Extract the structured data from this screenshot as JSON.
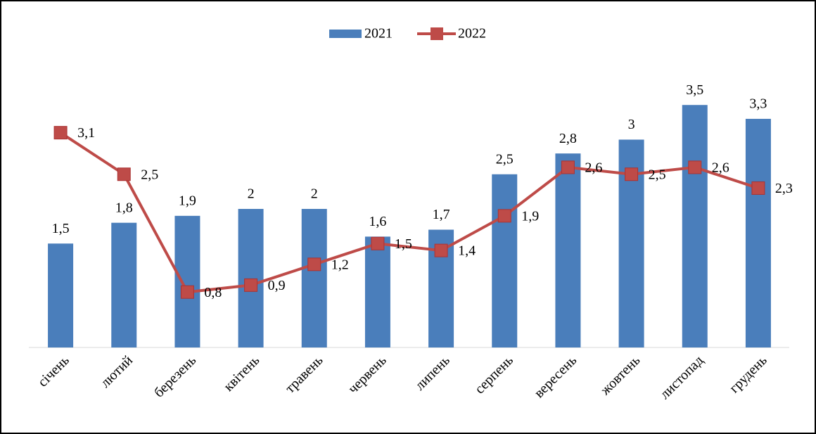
{
  "chart_data": {
    "type": "bar",
    "categories": [
      "січень",
      "лютий",
      "березень",
      "квітень",
      "травень",
      "червень",
      "липень",
      "серпень",
      "вересень",
      "жовтень",
      "листопад",
      "грудень"
    ],
    "series": [
      {
        "name": "2021",
        "type": "bar",
        "color": "#4a7ebb",
        "values": [
          1.5,
          1.8,
          1.9,
          2,
          2,
          1.6,
          1.7,
          2.5,
          2.8,
          3,
          3.5,
          3.3
        ],
        "value_labels": [
          "1,5",
          "1,8",
          "1,9",
          "2",
          "2",
          "1,6",
          "1,7",
          "2,5",
          "2,8",
          "3",
          "3,5",
          "3,3"
        ]
      },
      {
        "name": "2022",
        "type": "line",
        "color": "#be4b48",
        "values": [
          3.1,
          2.5,
          0.8,
          0.9,
          1.2,
          1.5,
          1.4,
          1.9,
          2.6,
          2.5,
          2.6,
          2.3
        ],
        "value_labels": [
          "3,1",
          "2,5",
          "0,8",
          "0,9",
          "1,2",
          "1,5",
          "1,4",
          "1,9",
          "2,6",
          "2,5",
          "2,6",
          "2,3"
        ]
      }
    ],
    "ylim": [
      0,
      4
    ],
    "legend": "top"
  }
}
